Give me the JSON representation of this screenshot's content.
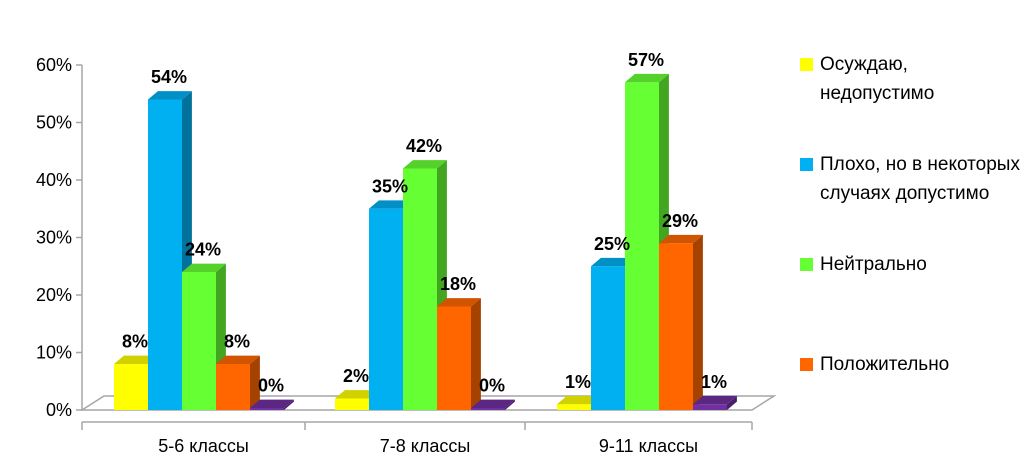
{
  "chart_data": {
    "type": "bar",
    "title": "",
    "xlabel": "",
    "ylabel": "",
    "ylim": [
      0,
      60
    ],
    "yticks": [
      "0%",
      "10%",
      "20%",
      "30%",
      "40%",
      "50%",
      "60%"
    ],
    "categories": [
      "5-6 классы",
      "7-8 классы",
      "9-11 классы"
    ],
    "series": [
      {
        "name": "Осуждаю, недопустимо",
        "color": "#ffff00",
        "values": [
          8,
          2,
          1
        ],
        "labels": [
          "8%",
          "2%",
          "1%"
        ]
      },
      {
        "name": "Плохо, но в некоторых случаях допустимо",
        "color": "#00b0f0",
        "values": [
          54,
          35,
          25
        ],
        "labels": [
          "54%",
          "35%",
          "25%"
        ]
      },
      {
        "name": "Нейтрально",
        "color": "#66ff33",
        "values": [
          24,
          42,
          57
        ],
        "labels": [
          "24%",
          "42%",
          "57%"
        ]
      },
      {
        "name": "Положительно",
        "color": "#ff6600",
        "values": [
          8,
          18,
          29
        ],
        "labels": [
          "8%",
          "18%",
          "29%"
        ]
      },
      {
        "name": "",
        "color": "#7030a0",
        "values": [
          0,
          0,
          1
        ],
        "labels": [
          "0%",
          "0%",
          "1%"
        ]
      }
    ],
    "legend_position": "right",
    "grid": false,
    "style": "3d-clustered-column"
  }
}
